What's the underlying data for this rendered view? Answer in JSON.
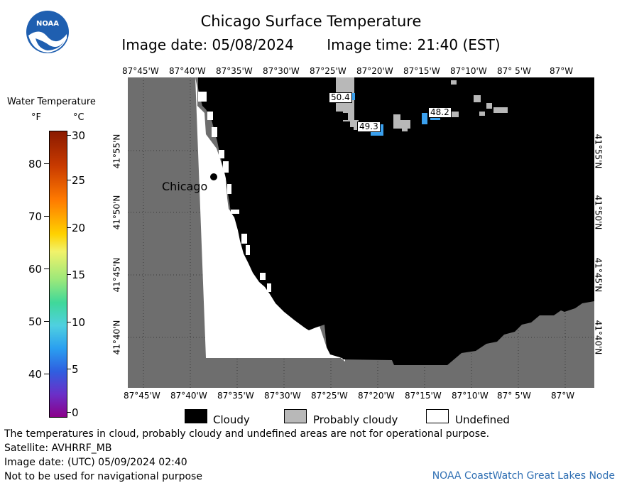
{
  "header": {
    "title": "Chicago Surface Temperature",
    "image_date": "Image date: 05/08/2024",
    "image_time": "Image time: 21:40 (EST)"
  },
  "logo": {
    "text": "NOAA"
  },
  "map": {
    "lon_labels": [
      "87°45'W",
      "87°40'W",
      "87°35'W",
      "87°30'W",
      "87°25'W",
      "87°20'W",
      "87°15'W",
      "87°10'W",
      "87° 5'W",
      "87°W"
    ],
    "lat_labels": [
      "41°55'N",
      "41°50'N",
      "41°45'N",
      "41°40'N"
    ],
    "city_label": "Chicago",
    "temperature_labels": [
      "50.4",
      "49.3",
      "48.2"
    ],
    "colors": {
      "land": "#6e6e6e",
      "cloudy": "#000000",
      "probably_cloudy": "#b8b8b8",
      "undefined": "#ffffff",
      "water_measured": "#3aa0ee"
    }
  },
  "colorbar": {
    "title": "Water Temperature",
    "unit_f": "°F",
    "unit_c": "°C",
    "f_ticks": [
      "80",
      "70",
      "60",
      "50",
      "40"
    ],
    "c_ticks": [
      "30",
      "25",
      "20",
      "15",
      "10",
      "5",
      "0"
    ]
  },
  "legend": {
    "cloudy": "Cloudy",
    "probably_cloudy": "Probably cloudy",
    "undefined": "Undefined"
  },
  "notes": {
    "line1": "The temperatures in cloud, probably cloudy and undefined areas are not for operational purpose.",
    "line2": "Satellite: AVHRRF_MB",
    "line3": "Image date: (UTC) 05/09/2024  02:40",
    "line4": "Not to be used for navigational purpose",
    "credit": "NOAA CoastWatch Great Lakes Node"
  }
}
